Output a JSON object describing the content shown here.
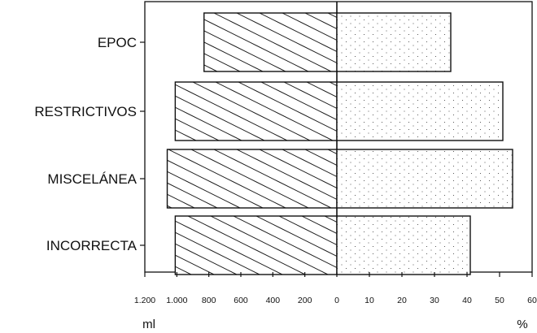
{
  "chart_data": {
    "type": "bar",
    "orientation": "horizontal",
    "diverging": true,
    "categories": [
      "EPOC",
      "RESTRICTIVOS",
      "MISCELÁNEA",
      "INCORRECTA"
    ],
    "series": [
      {
        "values": [
          830,
          1010,
          1060,
          1010
        ],
        "side": "left",
        "pattern": "hatched",
        "unit": "ml"
      },
      {
        "values": [
          35,
          51,
          54,
          41
        ],
        "side": "right",
        "pattern": "dotted",
        "unit": "%"
      }
    ],
    "left_axis": {
      "unit_label": "ml",
      "range": [
        1200,
        0
      ],
      "ticks": [
        1200,
        1000,
        800,
        600,
        400,
        200,
        0
      ],
      "tick_labels": [
        "1.200",
        "1.000",
        "800",
        "600",
        "400",
        "200",
        "0"
      ]
    },
    "right_axis": {
      "unit_label": "%",
      "range": [
        0,
        60
      ],
      "ticks": [
        0,
        10,
        20,
        30,
        40,
        50,
        60
      ],
      "tick_labels": [
        "0",
        "10",
        "20",
        "30",
        "40",
        "50",
        "60"
      ]
    },
    "grid": false,
    "legend": "none",
    "colors": {
      "stroke": "#111111",
      "fill": "#ffffff"
    }
  }
}
